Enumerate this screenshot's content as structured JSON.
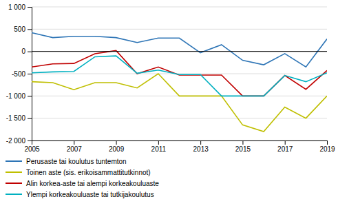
{
  "chart_data": {
    "type": "line",
    "x": [
      2005,
      2006,
      2007,
      2008,
      2009,
      2010,
      2011,
      2012,
      2013,
      2014,
      2015,
      2016,
      2017,
      2018,
      2019
    ],
    "series": [
      {
        "name": "Perusaste tai koulutus tuntemton",
        "color": "#2E75B6",
        "values": [
          420,
          310,
          340,
          340,
          310,
          200,
          300,
          300,
          -30,
          150,
          -200,
          -300,
          -50,
          -350,
          280
        ]
      },
      {
        "name": "Toinen aste (sis. erikoisammattitutkinnot)",
        "color": "#BFBF00",
        "values": [
          -680,
          -700,
          -860,
          -700,
          -700,
          -820,
          -500,
          -1000,
          -1000,
          -1000,
          -1650,
          -1800,
          -1250,
          -1500,
          -1000
        ]
      },
      {
        "name": "Alin korkea-aste tai alempi korkeakouluaste",
        "color": "#C00000",
        "values": [
          -350,
          -280,
          -270,
          -50,
          20,
          -500,
          -350,
          -530,
          -530,
          -530,
          -1000,
          -1000,
          -540,
          -850,
          -430
        ]
      },
      {
        "name": "Ylempi korkeakouluaste tai tutkijakoulutus",
        "color": "#00B0C0",
        "values": [
          -480,
          -460,
          -450,
          -120,
          -100,
          -490,
          -420,
          -520,
          -520,
          -1000,
          -1000,
          -1000,
          -540,
          -680,
          -480
        ]
      }
    ],
    "xlim": [
      2005,
      2019
    ],
    "xticks": [
      2005,
      2007,
      2009,
      2011,
      2013,
      2015,
      2017,
      2019
    ],
    "ylim": [
      -2000,
      1000
    ],
    "yticks": [
      {
        "value": -2000,
        "label": "-2 000"
      },
      {
        "value": -1500,
        "label": "-1 500"
      },
      {
        "value": -1000,
        "label": "-1 000"
      },
      -500,
      0,
      500,
      {
        "value": 1000,
        "label": "1 000"
      }
    ],
    "grid": true,
    "legend": "bottom"
  }
}
